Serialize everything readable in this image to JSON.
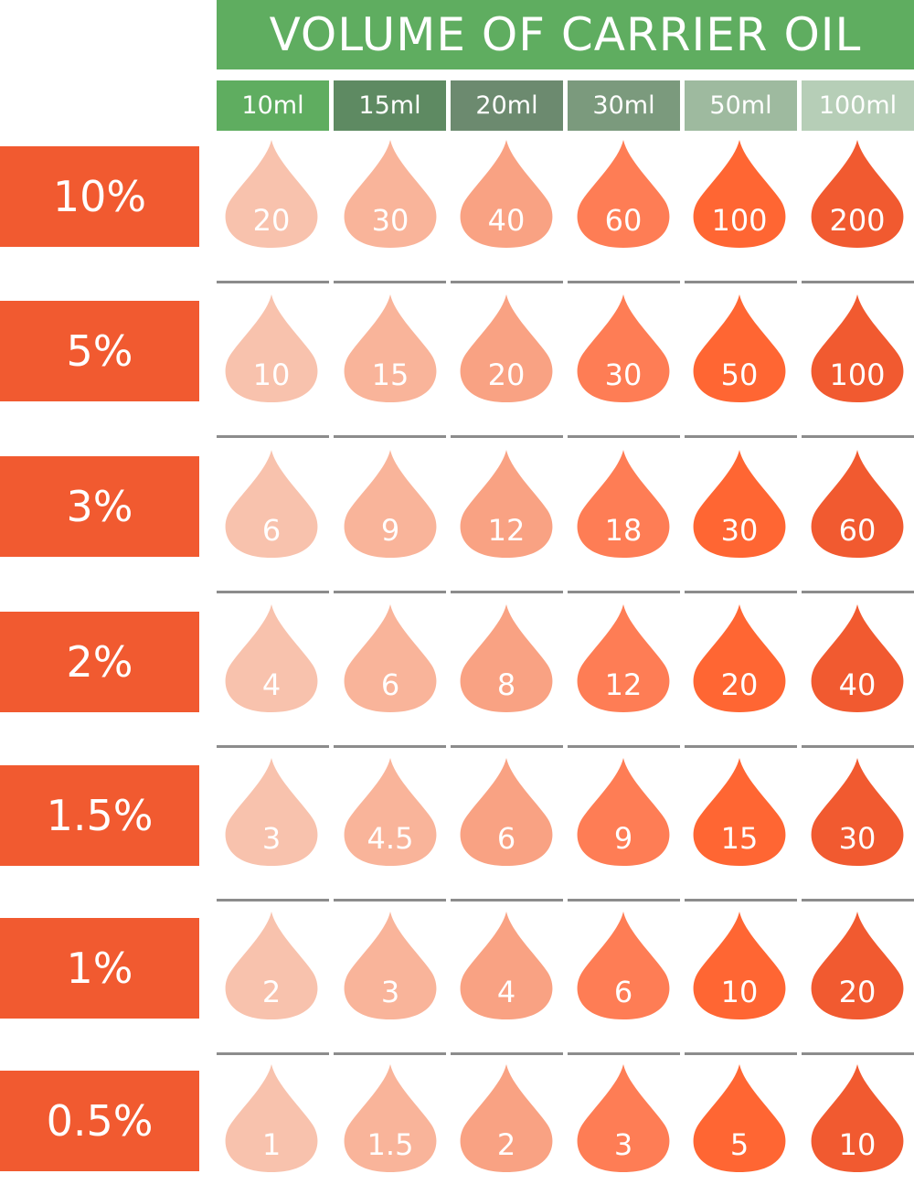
{
  "title": "VOLUME OF CARRIER OIL",
  "colors": {
    "title_bg": "#5fad60",
    "label_bg": "#f15a30",
    "divider": "#8c8c8c",
    "column_header_bgs": [
      "#5fad60",
      "#5e8a62",
      "#6c8a6f",
      "#7b9a7d",
      "#9eba9f",
      "#b6ceb7"
    ],
    "drop_colors": [
      "#f8c2ad",
      "#f9b49a",
      "#f9a283",
      "#fe7d55",
      "#ff6633",
      "#f15a30"
    ]
  },
  "columns": [
    "10ml",
    "15ml",
    "20ml",
    "30ml",
    "50ml",
    "100ml"
  ],
  "rows": [
    {
      "label": "10%",
      "values": [
        "20",
        "30",
        "40",
        "60",
        "100",
        "200"
      ]
    },
    {
      "label": "5%",
      "values": [
        "10",
        "15",
        "20",
        "30",
        "50",
        "100"
      ]
    },
    {
      "label": "3%",
      "values": [
        "6",
        "9",
        "12",
        "18",
        "30",
        "60"
      ]
    },
    {
      "label": "2%",
      "values": [
        "4",
        "6",
        "8",
        "12",
        "20",
        "40"
      ]
    },
    {
      "label": "1.5%",
      "values": [
        "3",
        "4.5",
        "6",
        "9",
        "15",
        "30"
      ]
    },
    {
      "label": "1%",
      "values": [
        "2",
        "3",
        "4",
        "6",
        "10",
        "20"
      ]
    },
    {
      "label": "0.5%",
      "values": [
        "1",
        "1.5",
        "2",
        "3",
        "5",
        "10"
      ]
    }
  ]
}
